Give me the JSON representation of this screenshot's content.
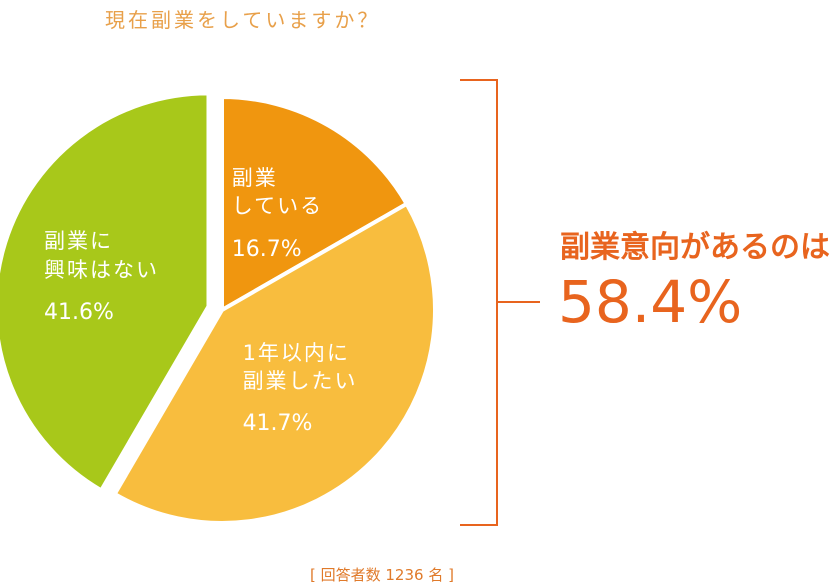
{
  "chart_data": {
    "type": "pie",
    "title": "現在副業をしていますか？",
    "categories": [
      "副業\nしている",
      "1年以内に\n副業したい",
      "副業に\n興味はない"
    ],
    "values": [
      16.7,
      41.7,
      41.6
    ],
    "value_labels": [
      "16.7%",
      "41.7%",
      "41.6%"
    ],
    "colors": [
      "#f0960f",
      "#f8bd3e",
      "#a8c81a"
    ],
    "callout": {
      "label": "副業意向があるのは",
      "value_label": "58.4%"
    },
    "note": "[ 回答者数 1236 名 ]"
  }
}
